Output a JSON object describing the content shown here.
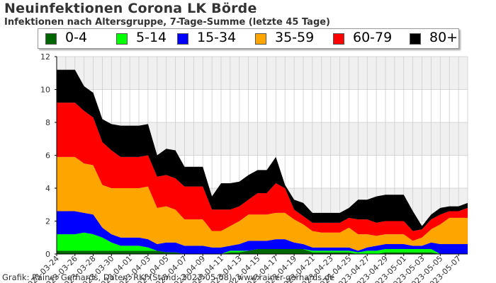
{
  "title": "Neuinfektionen Corona LK Börde",
  "subtitle": "Infektionen nach Altersgruppe, 7-Tage-Summe (letzte 45 Tage)",
  "credit": "Grafik: Rainer Gerhards, Daten: RKI (Stand: 2023-05-08), www.rainer-gerhards.de",
  "chart_data": {
    "type": "area",
    "stacked": true,
    "title": "Neuinfektionen Corona LK Börde",
    "subtitle": "Infektionen nach Altersgruppe, 7-Tage-Summe (letzte 45 Tage)",
    "ylim": [
      0,
      12
    ],
    "yticks": [
      0,
      2,
      4,
      6,
      8,
      10,
      12
    ],
    "grid": true,
    "legend_position": "top",
    "background_bands": [
      "#f0f0f0",
      "#ffffff"
    ],
    "x": [
      "2023-03-24",
      "2023-03-25",
      "2023-03-26",
      "2023-03-27",
      "2023-03-28",
      "2023-03-29",
      "2023-03-30",
      "2023-03-31",
      "2023-04-01",
      "2023-04-02",
      "2023-04-03",
      "2023-04-04",
      "2023-04-05",
      "2023-04-06",
      "2023-04-07",
      "2023-04-08",
      "2023-04-09",
      "2023-04-10",
      "2023-04-11",
      "2023-04-12",
      "2023-04-13",
      "2023-04-14",
      "2023-04-15",
      "2023-04-16",
      "2023-04-17",
      "2023-04-18",
      "2023-04-19",
      "2023-04-20",
      "2023-04-21",
      "2023-04-22",
      "2023-04-23",
      "2023-04-24",
      "2023-04-25",
      "2023-04-26",
      "2023-04-27",
      "2023-04-28",
      "2023-04-29",
      "2023-04-30",
      "2023-05-01",
      "2023-05-02",
      "2023-05-03",
      "2023-05-04",
      "2023-05-05",
      "2023-05-06",
      "2023-05-07",
      "2023-05-08"
    ],
    "x_tick_labels": [
      "2023-03-24",
      "2023-03-26",
      "2023-03-28",
      "2023-03-30",
      "2023-04-01",
      "2023-04-03",
      "2023-04-05",
      "2023-04-07",
      "2023-04-09",
      "2023-04-11",
      "2023-04-13",
      "2023-04-15",
      "2023-04-17",
      "2023-04-19",
      "2023-04-21",
      "2023-04-23",
      "2023-04-25",
      "2023-04-27",
      "2023-04-29",
      "2023-05-01",
      "2023-05-03",
      "2023-05-05",
      "2023-05-07"
    ],
    "series": [
      {
        "name": "0-4",
        "color": "#006600",
        "values": [
          0.2,
          0.2,
          0.2,
          0.2,
          0.2,
          0.2,
          0.2,
          0.2,
          0.2,
          0.2,
          0.2,
          0.2,
          0.1,
          0.1,
          0,
          0,
          0,
          0,
          0,
          0.1,
          0.1,
          0.2,
          0.3,
          0.3,
          0.3,
          0.3,
          0.3,
          0.3,
          0.1,
          0.1,
          0.1,
          0.1,
          0.1,
          0,
          0,
          0,
          0.1,
          0.1,
          0.1,
          0.1,
          0.1,
          0.1,
          0,
          0,
          0,
          0
        ]
      },
      {
        "name": "5-14",
        "color": "#00ff00",
        "values": [
          1,
          1,
          1,
          1.1,
          1,
          0.8,
          0.5,
          0.3,
          0.3,
          0.3,
          0.2,
          0,
          0,
          0,
          0,
          0,
          0,
          0,
          0,
          0.1,
          0.1,
          0,
          0,
          0,
          0,
          0,
          0,
          0,
          0.1,
          0.1,
          0.1,
          0.1,
          0.1,
          0.1,
          0.2,
          0.2,
          0.2,
          0.2,
          0.2,
          0.2,
          0.2,
          0.2,
          0,
          0,
          0,
          0
        ]
      },
      {
        "name": "15-34",
        "color": "#0000ff",
        "values": [
          1.4,
          1.4,
          1.4,
          1.2,
          1.2,
          0.6,
          0.5,
          0.5,
          0.5,
          0.5,
          0.5,
          0.4,
          0.6,
          0.6,
          0.5,
          0.5,
          0.5,
          0.4,
          0.4,
          0.3,
          0.4,
          0.6,
          0.5,
          0.5,
          0.6,
          0.6,
          0.4,
          0.3,
          0.2,
          0.2,
          0.2,
          0.2,
          0.2,
          0.1,
          0.2,
          0.3,
          0.3,
          0.3,
          0.3,
          0.2,
          0.2,
          0.4,
          0.6,
          0.6,
          0.6,
          0.6
        ]
      },
      {
        "name": "35-59",
        "color": "#ffa500",
        "values": [
          3.3,
          3.3,
          3.3,
          3,
          3,
          2.6,
          2.8,
          3,
          3,
          3,
          3.2,
          2.2,
          2.2,
          2,
          1.6,
          1.6,
          1.6,
          1,
          1,
          1.2,
          1.4,
          1.6,
          1.6,
          1.6,
          1.6,
          1.6,
          1.4,
          1.2,
          1,
          0.9,
          0.9,
          0.9,
          1.2,
          1,
          0.8,
          0.6,
          0.6,
          0.6,
          0.6,
          0.3,
          0.5,
          0.8,
          1.2,
          1.6,
          1.6,
          1.6
        ]
      },
      {
        "name": "60-79",
        "color": "#ff0000",
        "values": [
          3.3,
          3.3,
          3.3,
          3.2,
          2.9,
          2.6,
          2.3,
          1.9,
          1.9,
          1.9,
          1.9,
          1.9,
          1.9,
          1.9,
          2,
          2,
          2,
          1.3,
          1.3,
          1,
          0.9,
          0.9,
          1.3,
          1.3,
          1.8,
          1.5,
          0.6,
          0.5,
          0.5,
          0.6,
          0.6,
          0.6,
          0.6,
          0.9,
          0.9,
          0.8,
          0.8,
          0.8,
          0.8,
          0.6,
          0.5,
          0.6,
          0.6,
          0.4,
          0.4,
          0.6
        ]
      },
      {
        "name": "80+",
        "color": "#000000",
        "values": [
          2,
          2,
          2,
          1.5,
          1.5,
          1.4,
          1.6,
          1.9,
          1.9,
          1.9,
          1.9,
          1.3,
          1.6,
          1.7,
          1.2,
          1.2,
          1.2,
          0.8,
          1.6,
          1.6,
          1.5,
          1.5,
          1.4,
          1.4,
          1.6,
          0.2,
          0.6,
          0.8,
          0.6,
          0.6,
          0.6,
          0.6,
          0.6,
          1.2,
          1.2,
          1.6,
          1.6,
          1.6,
          1.6,
          1.2,
          0.2,
          0.3,
          0.4,
          0.3,
          0.3,
          0.3
        ]
      }
    ]
  }
}
